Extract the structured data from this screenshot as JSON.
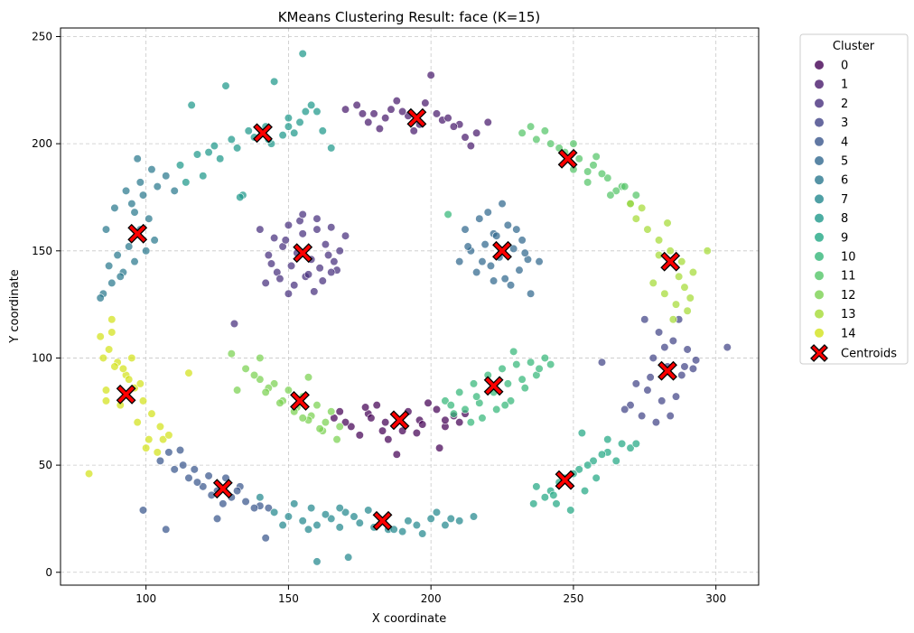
{
  "chart_data": {
    "type": "scatter",
    "title": "KMeans Clustering Result: face (K=15)",
    "xlabel": "X coordinate",
    "ylabel": "Y coordinate",
    "xlim": [
      70,
      315
    ],
    "ylim": [
      -6,
      254
    ],
    "xticks": [
      100,
      150,
      200,
      250,
      300
    ],
    "yticks": [
      0,
      50,
      100,
      150,
      200,
      250
    ],
    "grid": true,
    "legend": {
      "title": "Cluster",
      "placement": "outside-right",
      "labels": [
        "0",
        "1",
        "2",
        "3",
        "4",
        "5",
        "6",
        "7",
        "8",
        "9",
        "10",
        "11",
        "12",
        "13",
        "14"
      ],
      "centroid_label": "Centroids"
    },
    "colors": [
      "#440154",
      "#481a6c",
      "#472f7d",
      "#414487",
      "#39568c",
      "#31688e",
      "#2a788e",
      "#23888e",
      "#1f988b",
      "#22a884",
      "#35b779",
      "#54c568",
      "#7ad151",
      "#a5db36",
      "#d2e21b"
    ],
    "centroid_color": "#ff0000",
    "centroids": [
      {
        "cluster": 0,
        "x": 189,
        "y": 71
      },
      {
        "cluster": 1,
        "x": 195,
        "y": 212
      },
      {
        "cluster": 2,
        "x": 155,
        "y": 149
      },
      {
        "cluster": 3,
        "x": 283,
        "y": 94
      },
      {
        "cluster": 4,
        "x": 127,
        "y": 39
      },
      {
        "cluster": 5,
        "x": 225,
        "y": 150
      },
      {
        "cluster": 6,
        "x": 97,
        "y": 158
      },
      {
        "cluster": 7,
        "x": 183,
        "y": 24
      },
      {
        "cluster": 8,
        "x": 141,
        "y": 205
      },
      {
        "cluster": 9,
        "x": 247,
        "y": 43
      },
      {
        "cluster": 10,
        "x": 222,
        "y": 87
      },
      {
        "cluster": 11,
        "x": 248,
        "y": 193
      },
      {
        "cluster": 12,
        "x": 154,
        "y": 80
      },
      {
        "cluster": 13,
        "x": 284,
        "y": 145
      },
      {
        "cluster": 14,
        "x": 93,
        "y": 83
      }
    ],
    "points": [
      {
        "cluster": 0,
        "x": [
          166,
          172,
          178,
          184,
          190,
          196,
          202,
          208,
          175,
          185,
          195,
          205,
          181,
          192,
          199,
          170,
          188,
          210,
          177,
          203,
          168,
          197,
          183,
          212,
          179,
          205
        ],
        "y": [
          72,
          68,
          74,
          70,
          66,
          71,
          76,
          73,
          64,
          62,
          65,
          68,
          78,
          75,
          79,
          70,
          55,
          70,
          77,
          58,
          75,
          69,
          66,
          74,
          72,
          71
        ]
      },
      {
        "cluster": 1,
        "x": [
          174,
          180,
          186,
          192,
          198,
          204,
          210,
          216,
          178,
          184,
          190,
          196,
          202,
          208,
          200,
          176,
          188,
          194,
          206,
          212,
          182,
          214,
          220,
          170
        ],
        "y": [
          218,
          214,
          216,
          213,
          219,
          211,
          209,
          205,
          210,
          212,
          215,
          209,
          214,
          208,
          232,
          214,
          220,
          206,
          212,
          203,
          207,
          199,
          210,
          216
        ]
      },
      {
        "cluster": 2,
        "x": [
          140,
          145,
          150,
          155,
          160,
          165,
          170,
          143,
          148,
          153,
          158,
          163,
          168,
          146,
          151,
          156,
          161,
          166,
          142,
          147,
          152,
          157,
          162,
          167,
          149,
          154,
          159,
          164,
          144,
          155,
          160,
          150,
          165,
          131
        ],
        "y": [
          160,
          156,
          162,
          158,
          165,
          161,
          157,
          148,
          152,
          149,
          146,
          153,
          150,
          140,
          143,
          138,
          142,
          145,
          135,
          137,
          134,
          139,
          136,
          141,
          155,
          164,
          131,
          148,
          144,
          167,
          160,
          130,
          140,
          116
        ]
      },
      {
        "cluster": 3,
        "x": [
          275,
          280,
          285,
          290,
          278,
          283,
          288,
          293,
          272,
          276,
          281,
          286,
          270,
          274,
          279,
          284,
          289,
          282,
          287,
          304,
          292,
          268,
          260,
          277
        ],
        "y": [
          118,
          112,
          108,
          104,
          100,
          96,
          92,
          99,
          88,
          85,
          80,
          82,
          78,
          73,
          70,
          73,
          96,
          105,
          118,
          105,
          95,
          76,
          98,
          91
        ]
      },
      {
        "cluster": 4,
        "x": [
          105,
          110,
          115,
          120,
          125,
          130,
          135,
          140,
          108,
          113,
          118,
          123,
          128,
          133,
          138,
          112,
          117,
          122,
          127,
          132,
          142,
          107,
          125,
          99,
          143
        ],
        "y": [
          52,
          48,
          44,
          40,
          38,
          35,
          33,
          31,
          56,
          50,
          42,
          36,
          44,
          40,
          30,
          57,
          48,
          45,
          32,
          38,
          16,
          20,
          25,
          29,
          30
        ]
      },
      {
        "cluster": 5,
        "x": [
          212,
          217,
          222,
          227,
          232,
          214,
          219,
          224,
          229,
          234,
          216,
          221,
          226,
          231,
          213,
          218,
          223,
          228,
          233,
          220,
          225,
          230,
          235,
          222,
          238,
          210
        ],
        "y": [
          160,
          165,
          158,
          162,
          155,
          150,
          153,
          147,
          151,
          146,
          140,
          143,
          137,
          141,
          152,
          145,
          157,
          134,
          149,
          168,
          172,
          160,
          130,
          136,
          145,
          145
        ],
        "extra": true
      },
      {
        "cluster": 6,
        "x": [
          85,
          88,
          92,
          96,
          100,
          103,
          90,
          94,
          98,
          101,
          87,
          91,
          95,
          99,
          104,
          86,
          89,
          93,
          97,
          107,
          110,
          98,
          102,
          84,
          96
        ],
        "y": [
          130,
          135,
          140,
          145,
          150,
          155,
          148,
          152,
          160,
          165,
          143,
          138,
          172,
          176,
          180,
          160,
          170,
          178,
          193,
          185,
          178,
          182,
          188,
          128,
          168
        ]
      },
      {
        "cluster": 7,
        "x": [
          145,
          150,
          155,
          160,
          165,
          170,
          175,
          180,
          185,
          190,
          195,
          200,
          205,
          210,
          215,
          152,
          158,
          163,
          168,
          173,
          178,
          187,
          192,
          197,
          202,
          207,
          160,
          171,
          168,
          148,
          157,
          140
        ],
        "y": [
          28,
          26,
          24,
          22,
          25,
          28,
          23,
          21,
          20,
          19,
          22,
          25,
          22,
          24,
          26,
          32,
          30,
          27,
          30,
          26,
          29,
          20,
          24,
          18,
          28,
          25,
          5,
          7,
          21,
          22,
          20,
          35
        ]
      },
      {
        "cluster": 8,
        "x": [
          112,
          118,
          124,
          130,
          136,
          142,
          148,
          154,
          160,
          120,
          126,
          132,
          138,
          144,
          150,
          156,
          114,
          122,
          134,
          145,
          152,
          158,
          162,
          165,
          128,
          116,
          133,
          143,
          150,
          155
        ],
        "y": [
          190,
          195,
          199,
          202,
          206,
          208,
          204,
          210,
          215,
          185,
          193,
          198,
          203,
          200,
          208,
          215,
          182,
          196,
          176,
          229,
          205,
          218,
          206,
          198,
          227,
          218,
          175,
          202,
          212,
          242
        ]
      },
      {
        "cluster": 9,
        "x": [
          237,
          242,
          247,
          252,
          257,
          262,
          267,
          240,
          245,
          250,
          255,
          260,
          265,
          270,
          258,
          244,
          249,
          254,
          262,
          272,
          236,
          243,
          253
        ],
        "y": [
          40,
          38,
          44,
          48,
          52,
          56,
          60,
          35,
          42,
          46,
          50,
          55,
          52,
          58,
          44,
          32,
          29,
          38,
          62,
          60,
          32,
          36,
          65
        ]
      },
      {
        "cluster": 10,
        "x": [
          205,
          210,
          215,
          220,
          225,
          230,
          235,
          240,
          212,
          217,
          222,
          227,
          232,
          237,
          218,
          223,
          228,
          233,
          208,
          214,
          226,
          238,
          229,
          216,
          207,
          242,
          206
        ],
        "y": [
          80,
          84,
          88,
          92,
          95,
          97,
          98,
          100,
          76,
          79,
          84,
          88,
          90,
          92,
          72,
          76,
          80,
          86,
          74,
          70,
          78,
          95,
          103,
          82,
          78,
          97,
          167
        ]
      },
      {
        "cluster": 11,
        "x": [
          232,
          237,
          242,
          247,
          252,
          257,
          262,
          267,
          272,
          240,
          245,
          250,
          255,
          260,
          265,
          270,
          235,
          255,
          258,
          263,
          268,
          250
        ],
        "y": [
          205,
          202,
          200,
          196,
          193,
          190,
          184,
          180,
          176,
          206,
          198,
          188,
          182,
          186,
          178,
          172,
          208,
          187,
          194,
          176,
          180,
          200
        ]
      },
      {
        "cluster": 12,
        "x": [
          135,
          140,
          145,
          150,
          155,
          160,
          165,
          138,
          143,
          148,
          153,
          158,
          163,
          168,
          142,
          147,
          152,
          157,
          162,
          167,
          132,
          130,
          157,
          161,
          140,
          155
        ],
        "y": [
          95,
          90,
          88,
          85,
          82,
          78,
          75,
          92,
          86,
          80,
          77,
          73,
          70,
          68,
          84,
          79,
          75,
          71,
          66,
          62,
          85,
          102,
          91,
          67,
          100,
          72
        ]
      },
      {
        "cluster": 13,
        "x": [
          272,
          276,
          280,
          284,
          288,
          292,
          278,
          282,
          286,
          290,
          274,
          280,
          287,
          291,
          297,
          283,
          289,
          270,
          285
        ],
        "y": [
          165,
          160,
          155,
          150,
          145,
          140,
          135,
          130,
          125,
          122,
          170,
          148,
          138,
          128,
          150,
          163,
          133,
          172,
          118
        ]
      },
      {
        "cluster": 14,
        "x": [
          84,
          87,
          90,
          93,
          96,
          99,
          102,
          105,
          88,
          92,
          95,
          98,
          101,
          85,
          89,
          94,
          100,
          106,
          86,
          91,
          97,
          104,
          80,
          108,
          115,
          88,
          86
        ],
        "y": [
          110,
          104,
          98,
          92,
          86,
          80,
          74,
          68,
          112,
          95,
          100,
          88,
          62,
          100,
          96,
          90,
          58,
          62,
          85,
          78,
          70,
          56,
          46,
          64,
          93,
          118,
          80
        ]
      }
    ]
  }
}
